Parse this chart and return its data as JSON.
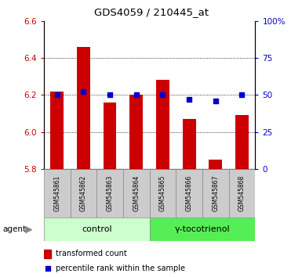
{
  "title": "GDS4059 / 210445_at",
  "samples": [
    "GSM545861",
    "GSM545862",
    "GSM545863",
    "GSM545864",
    "GSM545865",
    "GSM545866",
    "GSM545867",
    "GSM545868"
  ],
  "transformed_count": [
    6.22,
    6.46,
    6.16,
    6.2,
    6.28,
    6.07,
    5.85,
    6.09
  ],
  "percentile_rank": [
    50,
    52,
    50,
    50,
    50,
    47,
    46,
    50
  ],
  "bar_bottom": 5.8,
  "ylim_left": [
    5.8,
    6.6
  ],
  "ylim_right": [
    0,
    100
  ],
  "yticks_left": [
    5.8,
    6.0,
    6.2,
    6.4,
    6.6
  ],
  "yticks_right": [
    0,
    25,
    50,
    75,
    100
  ],
  "ytick_labels_right": [
    "0",
    "25",
    "50",
    "75",
    "100%"
  ],
  "grid_values": [
    6.0,
    6.2,
    6.4
  ],
  "bar_color": "#cc0000",
  "dot_color": "#0000cc",
  "control_label": "control",
  "treatment_label": "γ-tocotrienol",
  "agent_label": "agent",
  "legend_bar_label": "transformed count",
  "legend_dot_label": "percentile rank within the sample",
  "control_bg": "#ccffcc",
  "treatment_bg": "#55ee55",
  "sample_bg": "#cccccc",
  "tick_color_left": "#cc0000",
  "tick_color_right": "#0000cc",
  "bar_width": 0.5,
  "n_control": 4,
  "n_treatment": 4
}
